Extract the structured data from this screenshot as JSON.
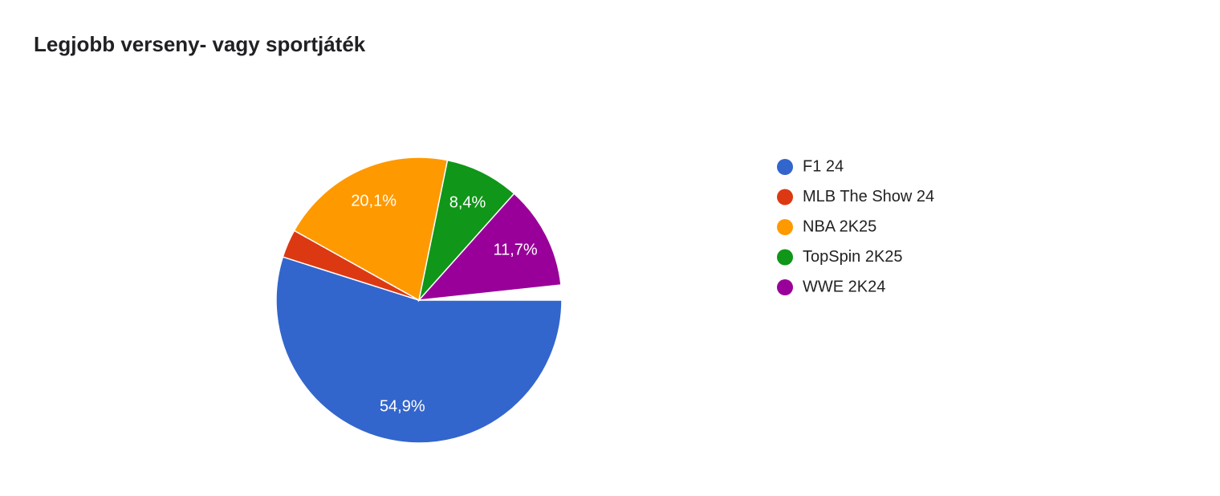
{
  "chart_data": {
    "type": "pie",
    "title": "Legjobb verseny- vagy sportjáték",
    "categories": [
      "F1 24",
      "MLB The Show 24",
      "NBA 2K25",
      "TopSpin 2K25",
      "WWE 2K24"
    ],
    "values": [
      54.9,
      3.2,
      20.1,
      8.4,
      11.7
    ],
    "value_labels": [
      "54,9%",
      null,
      "20,1%",
      "8,4%",
      "11,7%"
    ],
    "colors": [
      "#3366cc",
      "#dc3912",
      "#ff9900",
      "#109618",
      "#990099"
    ]
  }
}
